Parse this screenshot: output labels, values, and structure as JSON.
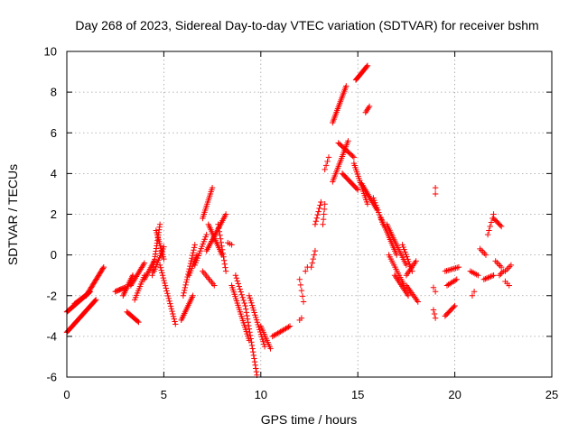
{
  "chart_data": {
    "type": "scatter",
    "title": "Day 268 of 2023, Sidereal Day-to-day VTEC variation (SDTVAR) for receiver bshm",
    "xlabel": "GPS time / hours",
    "ylabel": "SDTVAR / TECUs",
    "xlim": [
      0,
      25
    ],
    "ylim": [
      -6,
      10
    ],
    "x_ticks": [
      0,
      5,
      10,
      15,
      20,
      25
    ],
    "y_ticks": [
      -6,
      -4,
      -2,
      0,
      2,
      4,
      6,
      8,
      10
    ],
    "x_tick_labels": [
      "0",
      "5",
      "10",
      "15",
      "20",
      "25"
    ],
    "y_tick_labels": [
      "-6",
      "-4",
      "-2",
      "0",
      "2",
      "4",
      "6",
      "8",
      "10"
    ],
    "grid": true,
    "marker": "+",
    "color": "#ff0000",
    "segments": [
      {
        "x0": 0.0,
        "y0": -2.8,
        "x1": 1.2,
        "y1": -1.8,
        "n": 35
      },
      {
        "x0": 0.0,
        "y0": -3.8,
        "x1": 1.5,
        "y1": -2.2,
        "n": 40
      },
      {
        "x0": 1.0,
        "y0": -2.0,
        "x1": 1.9,
        "y1": -0.6,
        "n": 25
      },
      {
        "x0": 0.4,
        "y0": -2.4,
        "x1": 1.1,
        "y1": -1.9,
        "n": 15
      },
      {
        "x0": 2.5,
        "y0": -1.8,
        "x1": 3.0,
        "y1": -1.6,
        "n": 10
      },
      {
        "x0": 2.9,
        "y0": -2.0,
        "x1": 3.4,
        "y1": -1.0,
        "n": 14
      },
      {
        "x0": 3.1,
        "y0": -2.8,
        "x1": 3.7,
        "y1": -3.3,
        "n": 12
      },
      {
        "x0": 3.3,
        "y0": -1.5,
        "x1": 4.0,
        "y1": -0.4,
        "n": 16
      },
      {
        "x0": 3.5,
        "y0": -2.2,
        "x1": 4.0,
        "y1": -1.0,
        "n": 12
      },
      {
        "x0": 4.0,
        "y0": -1.2,
        "x1": 4.5,
        "y1": -0.3,
        "n": 12
      },
      {
        "x0": 4.4,
        "y0": -1.0,
        "x1": 4.8,
        "y1": 1.5,
        "n": 20
      },
      {
        "x0": 4.6,
        "y0": 1.2,
        "x1": 5.0,
        "y1": -0.2,
        "n": 14
      },
      {
        "x0": 4.8,
        "y0": -0.5,
        "x1": 5.6,
        "y1": -3.4,
        "n": 24
      },
      {
        "x0": 4.5,
        "y0": -0.8,
        "x1": 5.0,
        "y1": 0.4,
        "n": 12
      },
      {
        "x0": 5.9,
        "y0": -3.2,
        "x1": 6.5,
        "y1": -2.0,
        "n": 16
      },
      {
        "x0": 6.0,
        "y0": -2.0,
        "x1": 6.6,
        "y1": 0.5,
        "n": 20
      },
      {
        "x0": 6.3,
        "y0": -1.0,
        "x1": 6.7,
        "y1": 0.0,
        "n": 10
      },
      {
        "x0": 6.6,
        "y0": -0.5,
        "x1": 7.2,
        "y1": 1.0,
        "n": 14
      },
      {
        "x0": 7.0,
        "y0": 1.8,
        "x1": 7.5,
        "y1": 3.3,
        "n": 16
      },
      {
        "x0": 7.2,
        "y0": 0.2,
        "x1": 8.2,
        "y1": 2.0,
        "n": 24
      },
      {
        "x0": 7.3,
        "y0": 1.5,
        "x1": 8.0,
        "y1": 0.0,
        "n": 18
      },
      {
        "x0": 7.0,
        "y0": -0.8,
        "x1": 7.6,
        "y1": -1.5,
        "n": 10
      },
      {
        "x0": 7.8,
        "y0": 1.5,
        "x1": 8.2,
        "y1": -0.8,
        "n": 14
      },
      {
        "x0": 8.3,
        "y0": 0.6,
        "x1": 8.5,
        "y1": 0.5,
        "n": 3
      },
      {
        "x0": 8.5,
        "y0": -1.5,
        "x1": 9.4,
        "y1": -4.2,
        "n": 26
      },
      {
        "x0": 8.7,
        "y0": -1.0,
        "x1": 9.2,
        "y1": -2.5,
        "n": 12
      },
      {
        "x0": 9.2,
        "y0": -2.5,
        "x1": 9.8,
        "y1": -5.9,
        "n": 22
      },
      {
        "x0": 9.4,
        "y0": -2.0,
        "x1": 10.2,
        "y1": -4.5,
        "n": 22
      },
      {
        "x0": 10.0,
        "y0": -3.5,
        "x1": 10.5,
        "y1": -4.6,
        "n": 12
      },
      {
        "x0": 10.6,
        "y0": -4.0,
        "x1": 11.5,
        "y1": -3.5,
        "n": 14
      },
      {
        "x0": 12.0,
        "y0": -1.2,
        "x1": 12.2,
        "y1": -2.3,
        "n": 5
      },
      {
        "x0": 12.0,
        "y0": -3.2,
        "x1": 12.1,
        "y1": -3.1,
        "n": 2
      },
      {
        "x0": 12.3,
        "y0": -0.8,
        "x1": 12.4,
        "y1": -0.6,
        "n": 2
      },
      {
        "x0": 12.6,
        "y0": -0.6,
        "x1": 12.8,
        "y1": 0.2,
        "n": 5
      },
      {
        "x0": 12.8,
        "y0": 1.5,
        "x1": 13.1,
        "y1": 2.6,
        "n": 8
      },
      {
        "x0": 13.2,
        "y0": 1.5,
        "x1": 13.3,
        "y1": 2.5,
        "n": 5
      },
      {
        "x0": 13.3,
        "y0": 4.2,
        "x1": 13.5,
        "y1": 4.8,
        "n": 4
      },
      {
        "x0": 13.7,
        "y0": 6.5,
        "x1": 14.4,
        "y1": 8.3,
        "n": 22
      },
      {
        "x0": 13.7,
        "y0": 3.6,
        "x1": 14.5,
        "y1": 5.6,
        "n": 22
      },
      {
        "x0": 14.0,
        "y0": 5.5,
        "x1": 14.8,
        "y1": 4.8,
        "n": 14
      },
      {
        "x0": 14.2,
        "y0": 4.0,
        "x1": 15.0,
        "y1": 3.2,
        "n": 16
      },
      {
        "x0": 14.9,
        "y0": 8.6,
        "x1": 15.5,
        "y1": 9.3,
        "n": 16
      },
      {
        "x0": 15.4,
        "y0": 7.0,
        "x1": 15.6,
        "y1": 7.3,
        "n": 5
      },
      {
        "x0": 14.8,
        "y0": 4.5,
        "x1": 15.5,
        "y1": 2.5,
        "n": 20
      },
      {
        "x0": 15.2,
        "y0": 3.5,
        "x1": 16.0,
        "y1": 2.2,
        "n": 18
      },
      {
        "x0": 15.8,
        "y0": 2.8,
        "x1": 16.3,
        "y1": 1.5,
        "n": 12
      },
      {
        "x0": 16.2,
        "y0": 1.8,
        "x1": 17.0,
        "y1": 0.0,
        "n": 20
      },
      {
        "x0": 16.5,
        "y0": 1.5,
        "x1": 17.5,
        "y1": -0.5,
        "n": 22
      },
      {
        "x0": 16.6,
        "y0": 0.0,
        "x1": 17.4,
        "y1": -1.5,
        "n": 16
      },
      {
        "x0": 16.9,
        "y0": -1.0,
        "x1": 17.6,
        "y1": -2.0,
        "n": 14
      },
      {
        "x0": 17.3,
        "y0": 0.5,
        "x1": 17.8,
        "y1": -0.8,
        "n": 12
      },
      {
        "x0": 17.5,
        "y0": -1.0,
        "x1": 18.0,
        "y1": -0.3,
        "n": 10
      },
      {
        "x0": 17.5,
        "y0": -1.5,
        "x1": 18.1,
        "y1": -2.3,
        "n": 12
      },
      {
        "x0": 19.0,
        "y0": 3.0,
        "x1": 19.0,
        "y1": 3.3,
        "n": 2
      },
      {
        "x0": 18.9,
        "y0": -1.6,
        "x1": 19.0,
        "y1": -1.8,
        "n": 2
      },
      {
        "x0": 18.9,
        "y0": -2.7,
        "x1": 19.0,
        "y1": -3.1,
        "n": 3
      },
      {
        "x0": 19.5,
        "y0": -0.8,
        "x1": 20.2,
        "y1": -0.6,
        "n": 10
      },
      {
        "x0": 19.6,
        "y0": -1.5,
        "x1": 20.1,
        "y1": -1.2,
        "n": 8
      },
      {
        "x0": 19.5,
        "y0": -3.0,
        "x1": 20.0,
        "y1": -2.5,
        "n": 10
      },
      {
        "x0": 20.8,
        "y0": -0.8,
        "x1": 21.2,
        "y1": -1.0,
        "n": 6
      },
      {
        "x0": 20.9,
        "y0": -2.0,
        "x1": 21.0,
        "y1": -1.8,
        "n": 2
      },
      {
        "x0": 21.3,
        "y0": 0.3,
        "x1": 21.6,
        "y1": 0.0,
        "n": 5
      },
      {
        "x0": 21.5,
        "y0": -1.2,
        "x1": 22.0,
        "y1": -1.0,
        "n": 8
      },
      {
        "x0": 21.7,
        "y0": 1.0,
        "x1": 22.0,
        "y1": 2.0,
        "n": 6
      },
      {
        "x0": 22.0,
        "y0": 1.8,
        "x1": 22.4,
        "y1": 1.4,
        "n": 8
      },
      {
        "x0": 22.1,
        "y0": -0.3,
        "x1": 22.4,
        "y1": -0.6,
        "n": 5
      },
      {
        "x0": 22.3,
        "y0": -1.0,
        "x1": 22.5,
        "y1": -0.8,
        "n": 4
      },
      {
        "x0": 22.6,
        "y0": -0.8,
        "x1": 22.9,
        "y1": -0.5,
        "n": 5
      },
      {
        "x0": 22.6,
        "y0": -1.3,
        "x1": 22.8,
        "y1": -1.5,
        "n": 3
      }
    ]
  }
}
